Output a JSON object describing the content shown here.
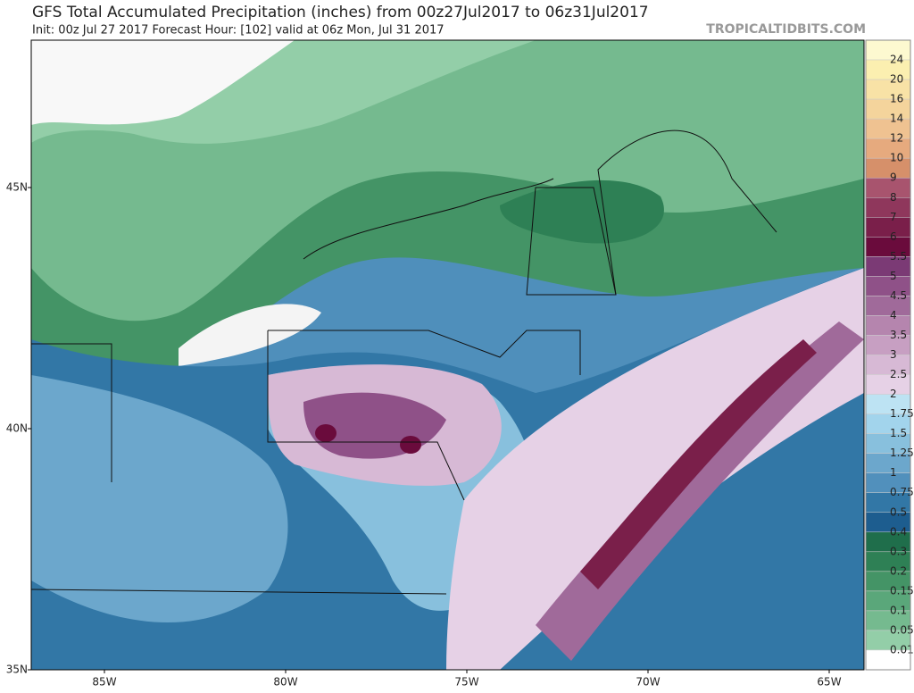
{
  "header": {
    "title": "GFS Total Accumulated Precipitation (inches) from 00z27Jul2017 to 06z31Jul2017",
    "subtitle": "Init: 00z Jul 27 2017   Forecast Hour: [102]   valid at 06z Mon, Jul 31 2017",
    "site": "TROPICALTIDBITS.COM"
  },
  "map": {
    "lat_labels": [
      "45N",
      "40N",
      "35N"
    ],
    "lon_labels": [
      "85W",
      "80W",
      "75W",
      "70W",
      "65W"
    ]
  },
  "colorbar": {
    "ticks": [
      24,
      20,
      16,
      14,
      12,
      10,
      9,
      8,
      7,
      6,
      5.5,
      5,
      4.5,
      4,
      3.5,
      3,
      2.5,
      2,
      1.75,
      1.5,
      1.25,
      1,
      0.75,
      0.5,
      0.4,
      0.3,
      0.2,
      0.15,
      0.1,
      0.05,
      0.01
    ],
    "colors": [
      "#fdf9d0",
      "#fbefb0",
      "#f8e2a6",
      "#f4d49c",
      "#efc291",
      "#e6aa7e",
      "#d6906a",
      "#a8546e",
      "#8f375c",
      "#7a1f4a",
      "#6a0b3c",
      "#7b3a75",
      "#8f5188",
      "#a06a9a",
      "#b585ae",
      "#c79fc2",
      "#d7b9d5",
      "#e6d1e6",
      "#bde3f3",
      "#a2d4ec",
      "#88c0dd",
      "#6ca7cc",
      "#5190bc",
      "#3277a6",
      "#1d5d8f",
      "#1f6e4b",
      "#2e8055",
      "#449466",
      "#5aa77a",
      "#75ba8f",
      "#93cea8",
      "#ffffff"
    ]
  }
}
